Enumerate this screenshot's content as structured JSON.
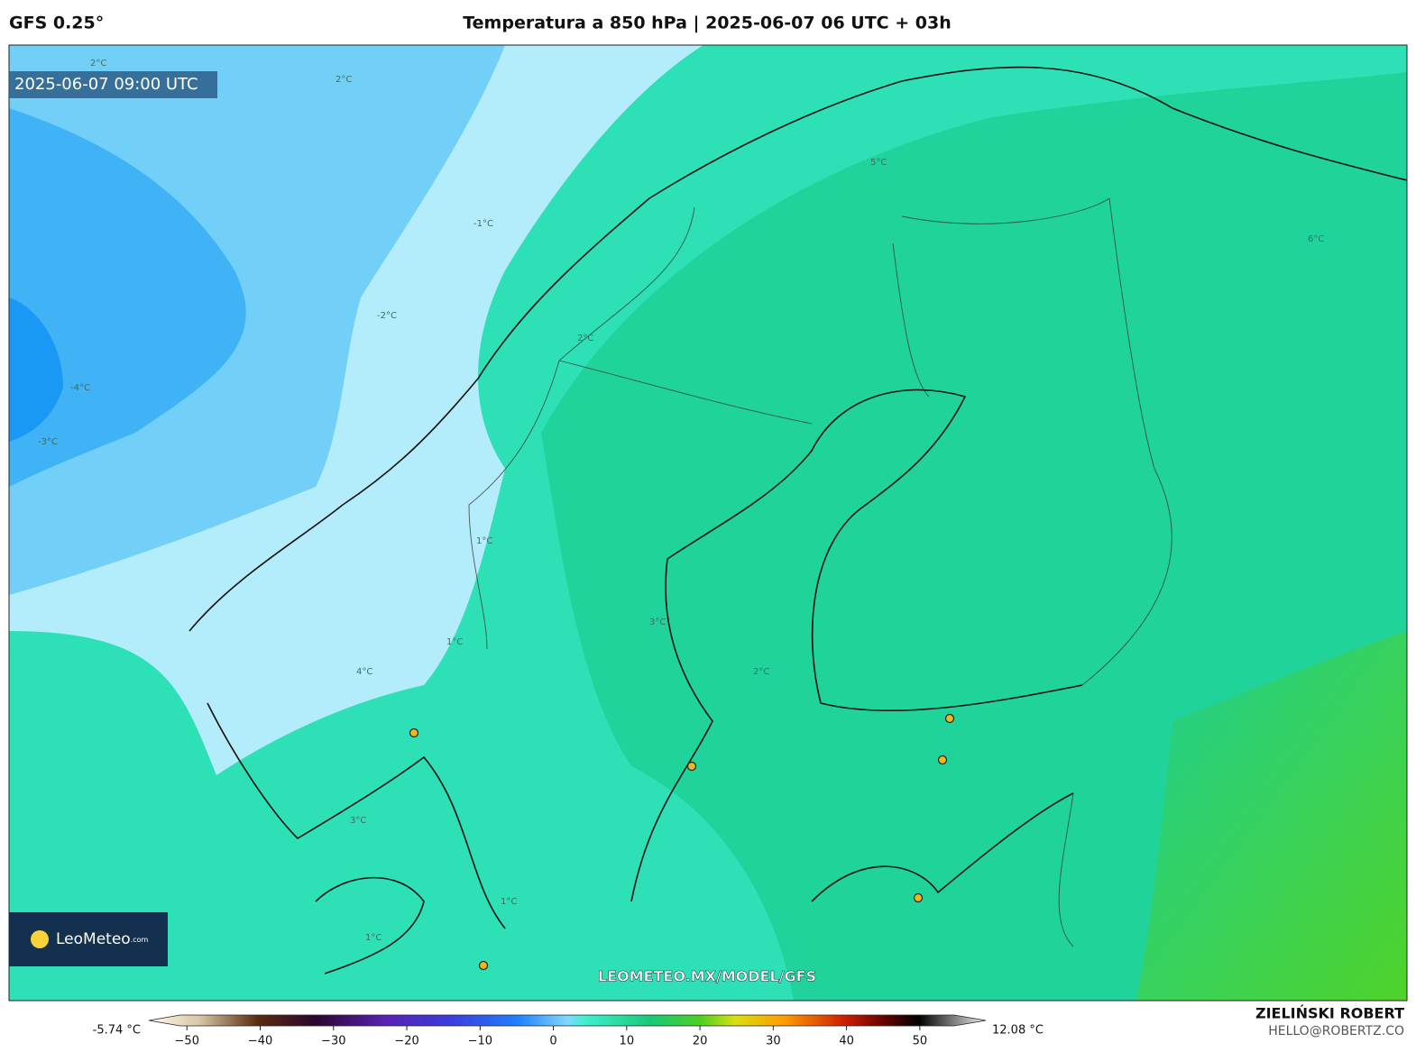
{
  "header": {
    "model": "GFS 0.25°",
    "title": "Temperatura a 850 hPa | 2025-06-07 06 UTC + 03h",
    "valid_time": "2025-06-07 09:00 UTC"
  },
  "logo": {
    "name": "LeoMeteo",
    "suffix": ".com"
  },
  "contour_labels": [
    "2°C",
    "2°C",
    "-1°C",
    "-2°C",
    "-4°C",
    "-3°C",
    "1°C",
    "1°C",
    "2°C",
    "3°C",
    "3°C",
    "2°C",
    "4°C",
    "5°C",
    "6°C",
    "1°C",
    "1°C"
  ],
  "colorbar": {
    "min_label": "-5.74 °C",
    "max_label": "12.08 °C",
    "lim": [
      -55.2,
      59
    ],
    "ticks": [
      {
        "value": -50,
        "label": "−50"
      },
      {
        "value": -40,
        "label": "−40"
      },
      {
        "value": -30,
        "label": "−30"
      },
      {
        "value": -20,
        "label": "−20"
      },
      {
        "value": -10,
        "label": "−10"
      },
      0,
      10,
      20,
      30,
      40,
      50
    ]
  },
  "footer": {
    "url": "LEOMETEO.MX/MODEL/GFS",
    "author": "ZIELIŃSKI ROBERT",
    "contact": "HELLO@ROBERTZ.CO"
  }
}
